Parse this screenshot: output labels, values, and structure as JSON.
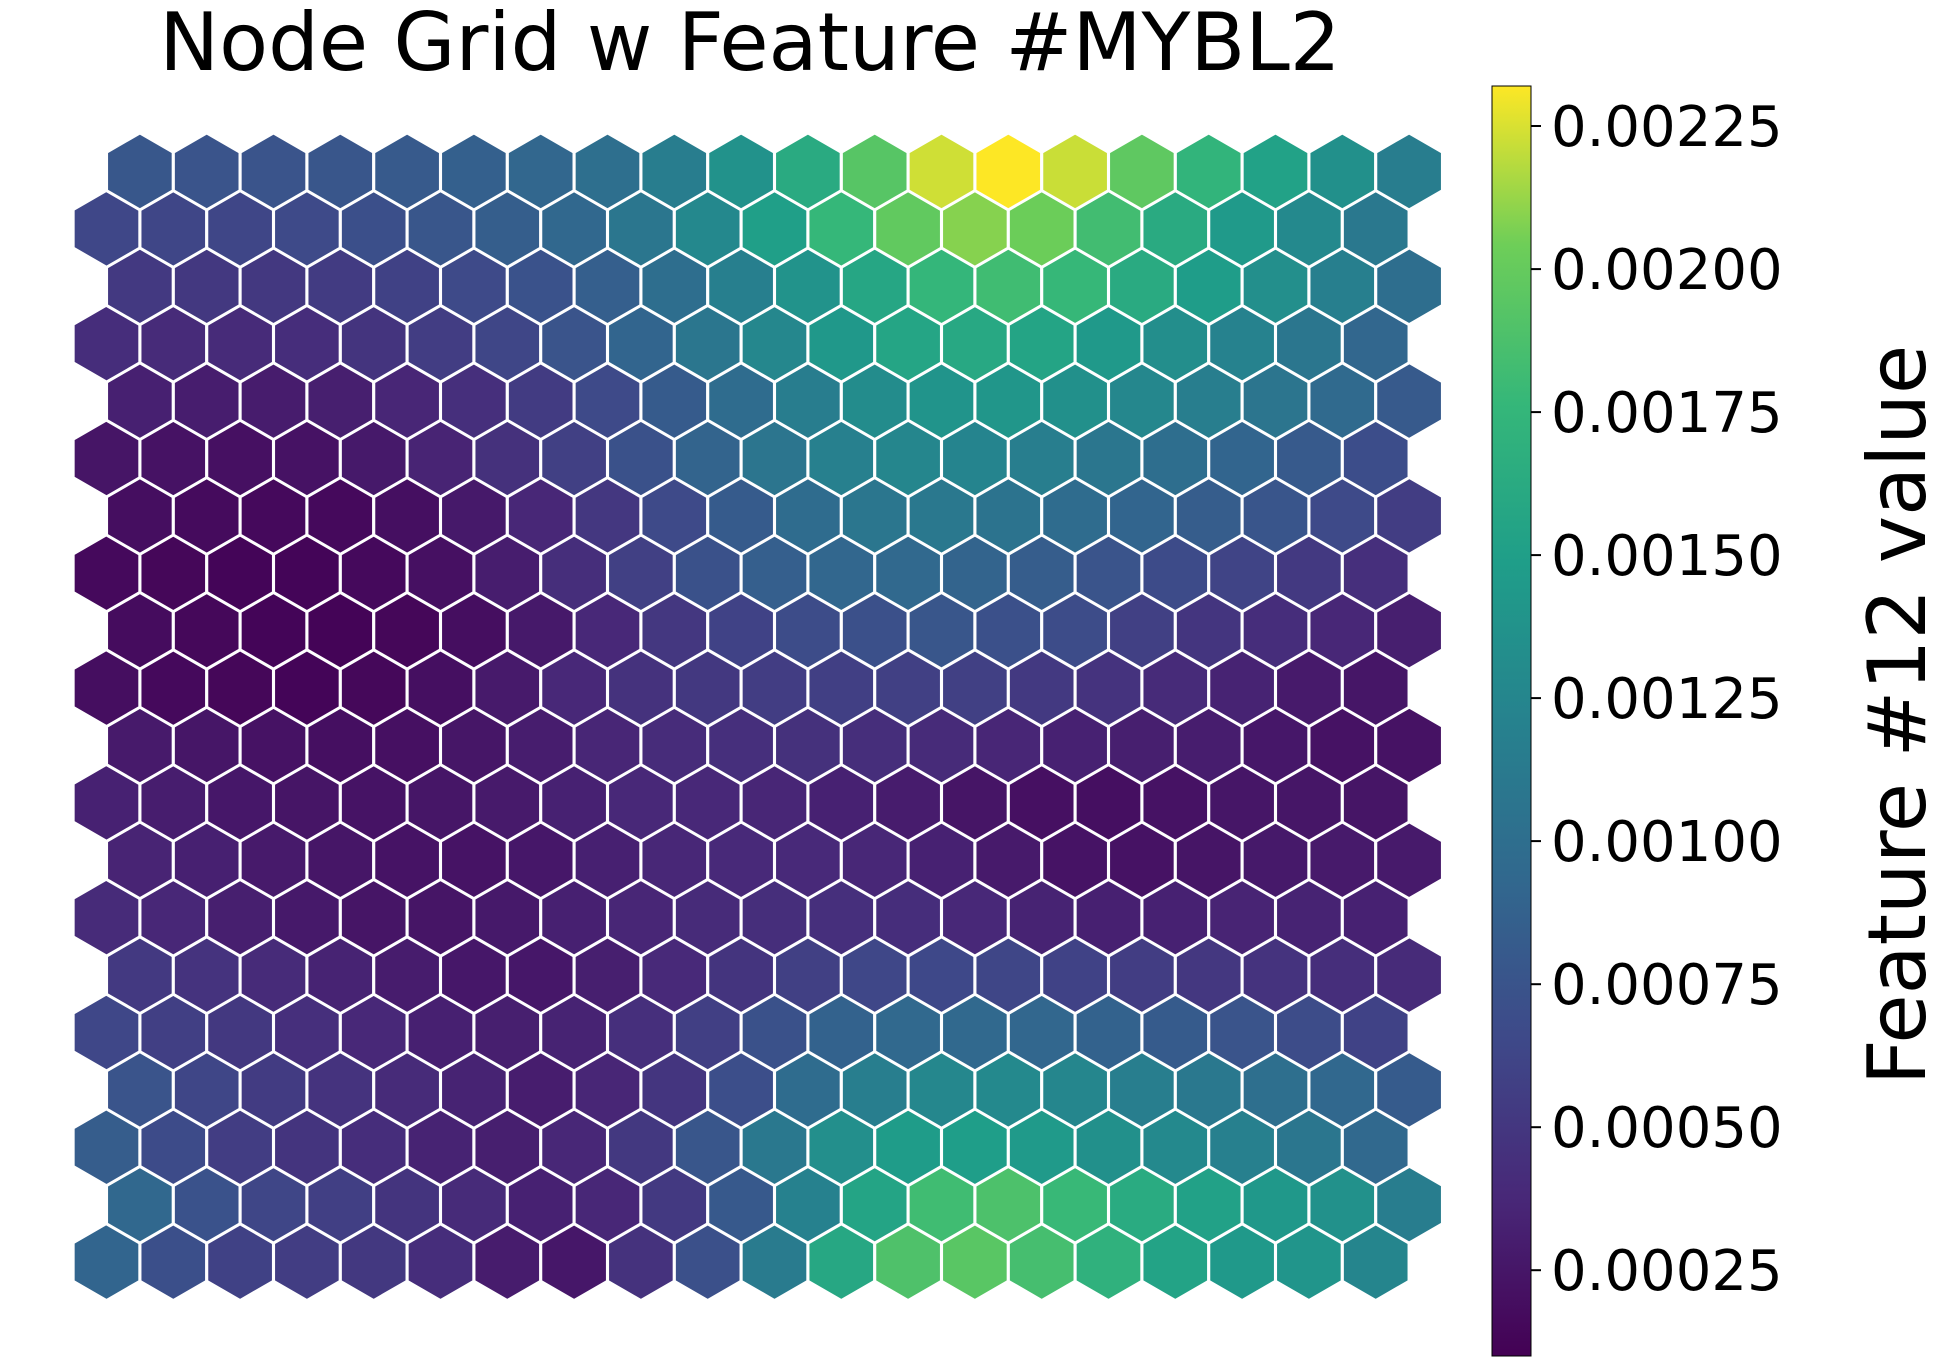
{
  "chart_data": {
    "type": "heatmap",
    "title": "Node Grid w Feature #MYBL2",
    "colorbar": {
      "label": "Feature #12 value",
      "ticks": [
        "0.00025",
        "0.00050",
        "0.00075",
        "0.00100",
        "0.00125",
        "0.00150",
        "0.00175",
        "0.00200",
        "0.00225"
      ],
      "range": [
        0.0001,
        0.00232
      ],
      "colormap": "viridis"
    },
    "grid": {
      "rows": 20,
      "cols": 20,
      "layout": "hexagonal"
    },
    "values": [
      [
        0.00091,
        0.00071,
        0.00059,
        0.00055,
        0.00051,
        0.00042,
        0.00029,
        0.00026,
        0.00046,
        0.00072,
        0.00113,
        0.00159,
        0.00189,
        0.00194,
        0.00185,
        0.0017,
        0.00154,
        0.00144,
        0.0014,
        0.00124
      ],
      [
        0.00093,
        0.00074,
        0.00063,
        0.00057,
        0.00048,
        0.0004,
        0.00033,
        0.00037,
        0.00052,
        0.0008,
        0.0012,
        0.00155,
        0.00182,
        0.00188,
        0.00178,
        0.00163,
        0.00152,
        0.00143,
        0.00136,
        0.00116
      ],
      [
        0.00083,
        0.00067,
        0.00055,
        0.00048,
        0.00042,
        0.00034,
        0.00031,
        0.00037,
        0.00051,
        0.00077,
        0.0011,
        0.00134,
        0.00147,
        0.00149,
        0.00145,
        0.00135,
        0.00128,
        0.00119,
        0.00108,
        0.00094
      ],
      [
        0.00075,
        0.00063,
        0.00054,
        0.00047,
        0.0004,
        0.00034,
        0.0003,
        0.00036,
        0.00049,
        0.0007,
        0.00098,
        0.00117,
        0.00126,
        0.00128,
        0.00125,
        0.00117,
        0.0011,
        0.00101,
        0.00093,
        0.00082
      ],
      [
        0.00064,
        0.00057,
        0.00051,
        0.00044,
        0.00038,
        0.00032,
        0.00031,
        0.00034,
        0.00044,
        0.00057,
        0.00073,
        0.00088,
        0.00094,
        0.00094,
        0.00092,
        0.00088,
        0.00082,
        0.00075,
        0.00068,
        0.0006
      ],
      [
        0.00052,
        0.00047,
        0.0004,
        0.00034,
        0.00029,
        0.00026,
        0.00026,
        0.00031,
        0.00039,
        0.00048,
        0.00058,
        0.00064,
        0.00065,
        0.00063,
        0.0006,
        0.00055,
        0.0005,
        0.00047,
        0.00043,
        0.0004
      ],
      [
        0.0004,
        0.00037,
        0.00031,
        0.00027,
        0.00024,
        0.00024,
        0.00027,
        0.00032,
        0.00036,
        0.0004,
        0.00043,
        0.00044,
        0.00042,
        0.00038,
        0.00034,
        0.00032,
        0.00033,
        0.00035,
        0.00034,
        0.00033
      ],
      [
        0.00035,
        0.00032,
        0.00028,
        0.00025,
        0.00023,
        0.00023,
        0.00026,
        0.00032,
        0.00037,
        0.00039,
        0.00039,
        0.00037,
        0.00033,
        0.00028,
        0.00023,
        0.00022,
        0.00024,
        0.00027,
        0.00028,
        0.00028
      ],
      [
        0.00033,
        0.0003,
        0.00026,
        0.00024,
        0.00023,
        0.00025,
        0.00028,
        0.00033,
        0.00038,
        0.00038,
        0.00036,
        0.00033,
        0.00029,
        0.00024,
        0.00021,
        0.0002,
        0.00022,
        0.00025,
        0.00025,
        0.00024
      ],
      [
        0.00028,
        0.00025,
        0.00022,
        0.0002,
        0.00021,
        0.00025,
        0.0003,
        0.00036,
        0.00041,
        0.00044,
        0.00045,
        0.00043,
        0.0004,
        0.00036,
        0.00033,
        0.00031,
        0.0003,
        0.00026,
        0.00022,
        0.00022
      ],
      [
        0.00019,
        0.00016,
        0.00014,
        0.00013,
        0.00015,
        0.0002,
        0.00028,
        0.00038,
        0.00046,
        0.00051,
        0.00055,
        0.00057,
        0.00058,
        0.00058,
        0.00052,
        0.00047,
        0.0004,
        0.00034,
        0.00028,
        0.00025
      ],
      [
        0.00018,
        0.00015,
        0.00013,
        0.00012,
        0.00014,
        0.00019,
        0.00027,
        0.00038,
        0.0005,
        0.0006,
        0.00068,
        0.00072,
        0.00077,
        0.00072,
        0.00068,
        0.00058,
        0.00049,
        0.00042,
        0.00037,
        0.00031
      ],
      [
        0.00016,
        0.00014,
        0.00013,
        0.00013,
        0.00016,
        0.00021,
        0.0003,
        0.00043,
        0.00058,
        0.00073,
        0.00085,
        0.00092,
        0.00094,
        0.0009,
        0.00083,
        0.00075,
        0.00067,
        0.00061,
        0.00052,
        0.00044
      ],
      [
        0.00019,
        0.00017,
        0.00016,
        0.00016,
        0.0002,
        0.00027,
        0.00037,
        0.0005,
        0.00066,
        0.00082,
        0.00098,
        0.00108,
        0.0011,
        0.00105,
        0.00098,
        0.00091,
        0.00083,
        0.00076,
        0.00066,
        0.00055
      ],
      [
        0.00024,
        0.00022,
        0.00021,
        0.00022,
        0.00027,
        0.00035,
        0.00045,
        0.00058,
        0.00073,
        0.0009,
        0.00107,
        0.00119,
        0.00125,
        0.00123,
        0.00117,
        0.00108,
        0.001,
        0.00091,
        0.00081,
        0.00069
      ],
      [
        0.00032,
        0.0003,
        0.00029,
        0.00031,
        0.00036,
        0.00044,
        0.00054,
        0.00066,
        0.00082,
        0.00098,
        0.00116,
        0.00131,
        0.00139,
        0.00141,
        0.00135,
        0.00126,
        0.00117,
        0.00107,
        0.00095,
        0.00081
      ],
      [
        0.00042,
        0.0004,
        0.0004,
        0.00042,
        0.00048,
        0.00055,
        0.00063,
        0.00075,
        0.00091,
        0.00108,
        0.00126,
        0.00143,
        0.00156,
        0.0016,
        0.00155,
        0.00144,
        0.00133,
        0.00121,
        0.00108,
        0.00092
      ],
      [
        0.00052,
        0.00051,
        0.00051,
        0.00054,
        0.00059,
        0.00066,
        0.00074,
        0.00085,
        0.001,
        0.00118,
        0.00138,
        0.00158,
        0.00175,
        0.00182,
        0.00177,
        0.00162,
        0.00148,
        0.00134,
        0.00118,
        0.001
      ],
      [
        0.00064,
        0.00063,
        0.00063,
        0.00066,
        0.00071,
        0.00077,
        0.00084,
        0.00093,
        0.00108,
        0.00127,
        0.0015,
        0.00176,
        0.00198,
        0.00209,
        0.00203,
        0.00183,
        0.00162,
        0.00145,
        0.00128,
        0.0011
      ],
      [
        0.00078,
        0.00075,
        0.00075,
        0.00077,
        0.00081,
        0.00086,
        0.00092,
        0.00101,
        0.00116,
        0.00137,
        0.00162,
        0.00193,
        0.00223,
        0.00232,
        0.00222,
        0.00197,
        0.00173,
        0.00153,
        0.00135,
        0.00116
      ]
    ]
  }
}
